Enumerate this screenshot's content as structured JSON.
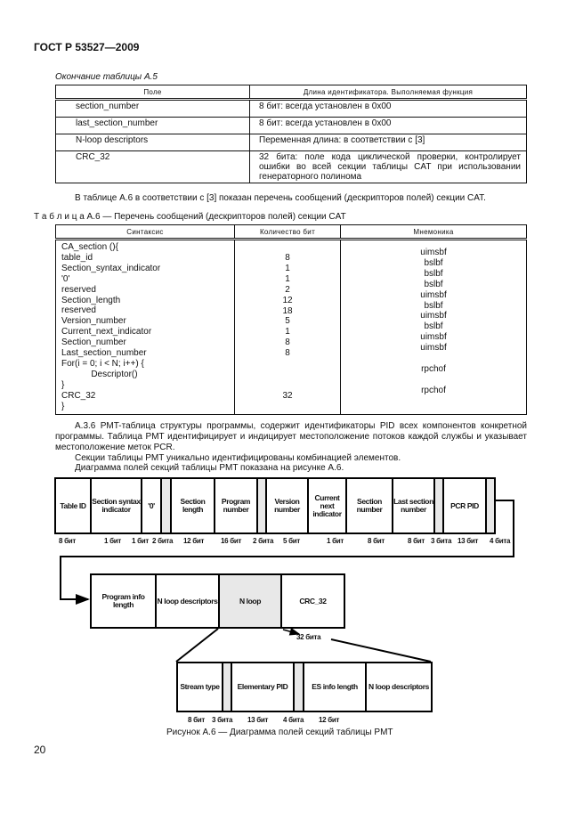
{
  "header": {
    "title": "ГОСТ Р 53527—2009"
  },
  "table_a5": {
    "caption": "Окончание таблицы А.5",
    "headers": [
      "Поле",
      "Длина идентификатора. Выполняемая функция"
    ],
    "rows": [
      [
        "section_number",
        "8 бит: всегда установлен в 0x00"
      ],
      [
        "last_section_number",
        "8 бит: всегда установлен в 0x00"
      ],
      [
        "N-loop descriptors",
        "Переменная длина: в соответствии с [3]"
      ],
      [
        "CRC_32",
        "32 бита: поле кода циклической проверки, контролирует ошибки во всей секции таблицы CAT при использовании генераторного полинома"
      ]
    ]
  },
  "para1": "В таблице А.6 в соответствии с [3] показан перечень сообщений (дескрипторов полей) секции CAT.",
  "table_a6": {
    "caption": "Т а б л и ц а  А.6 — Перечень сообщений (дескрипторов полей) секции CAT",
    "headers": [
      "Синтаксис",
      "Количество бит",
      "Мнемоника"
    ],
    "rows": [
      [
        "CA_section (){",
        "",
        ""
      ],
      [
        "table_id",
        "8",
        "uimsbf"
      ],
      [
        "Section_syntax_indicator",
        "1",
        "bslbf"
      ],
      [
        "'0'",
        "1",
        "bslbf"
      ],
      [
        "reserved",
        "2",
        "bslbf"
      ],
      [
        "Section_length",
        "12",
        "uimsbf"
      ],
      [
        "reserved",
        "18",
        "bslbf"
      ],
      [
        "Version_number",
        "5",
        "uimsbf"
      ],
      [
        "Current_next_indicator",
        "1",
        "bslbf"
      ],
      [
        "Section_number",
        "8",
        "uimsbf"
      ],
      [
        "Last_section_number",
        "8",
        "uimsbf"
      ],
      [
        "For(i = 0; i < N; i++) {",
        "",
        ""
      ],
      [
        "            Descriptor()",
        "",
        "rpchof"
      ],
      [
        "}",
        "",
        ""
      ],
      [
        "CRC_32",
        "32",
        "rpchof"
      ],
      [
        "}",
        "",
        ""
      ]
    ]
  },
  "para2": "А.3.6 PMT-таблица структуры программы, содержит идентификаторы PID всех компонентов конкретной программы. Таблица PMT идентифицирует и индицирует местоположение потоков каждой службы и указывает местоположение меток PCR.",
  "para3": "Секции таблицы PMT уникально идентифицированы комбинацией элементов.",
  "para4": "Диаграмма полей секций таблицы PMT показана на рисунке А.6.",
  "diagram": {
    "row1": [
      "Table ID",
      "Section syntax indicator",
      "'0'",
      "",
      "Section length",
      "Program number",
      "",
      "Version number",
      "Current next indicator",
      "Section number",
      "Last section number",
      "",
      "PCR PID",
      ""
    ],
    "row1_bits": [
      "8 бит",
      "1 бит",
      "1 бит",
      "2 бита",
      "12 бит",
      "16 бит",
      "2 бита",
      "5 бит",
      "1 бит",
      "8 бит",
      "8 бит",
      "3 бита",
      "13 бит",
      "4 бита"
    ],
    "row2": [
      "Program info length",
      "N loop descriptors",
      "N loop",
      "CRC_32"
    ],
    "crc_bits": "32 бита",
    "row3": [
      "Stream type",
      "",
      "Elementary PID",
      "",
      "ES info length",
      "N loop descriptors"
    ],
    "row3_bits": [
      "8 бит",
      "3 бита",
      "13 бит",
      "4 бита",
      "12 бит"
    ],
    "caption": "Рисунок А.6 — Диаграмма полей секций таблицы PMT"
  },
  "page_number": "20"
}
